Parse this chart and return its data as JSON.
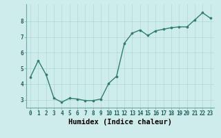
{
  "x": [
    0,
    1,
    2,
    3,
    4,
    5,
    6,
    7,
    8,
    9,
    10,
    11,
    12,
    13,
    14,
    15,
    16,
    17,
    18,
    19,
    20,
    21,
    22,
    23
  ],
  "y": [
    4.45,
    5.5,
    4.6,
    3.1,
    2.85,
    3.1,
    3.05,
    2.95,
    2.95,
    3.05,
    4.05,
    4.5,
    6.6,
    7.25,
    7.45,
    7.1,
    7.4,
    7.5,
    7.6,
    7.65,
    7.65,
    8.1,
    8.55,
    8.2
  ],
  "line_color": "#2e7d6e",
  "marker": "o",
  "markersize": 2.2,
  "linewidth": 1.0,
  "bg_color": "#ceecea",
  "grid_color": "#b0d8d4",
  "xlabel": "Humidex (Indice chaleur)",
  "xlabel_fontsize": 7.5,
  "xlabel_fontweight": "bold",
  "ylabel_ticks": [
    3,
    4,
    5,
    6,
    7,
    8
  ],
  "ylim": [
    2.5,
    9.1
  ],
  "xlim": [
    -0.5,
    23.5
  ],
  "xtick_labels": [
    "0",
    "1",
    "2",
    "3",
    "4",
    "5",
    "6",
    "7",
    "8",
    "9",
    "10",
    "11",
    "12",
    "13",
    "14",
    "15",
    "16",
    "17",
    "18",
    "19",
    "20",
    "21",
    "22",
    "23"
  ],
  "tick_fontsize": 5.5,
  "spine_color": "#6aaba5"
}
